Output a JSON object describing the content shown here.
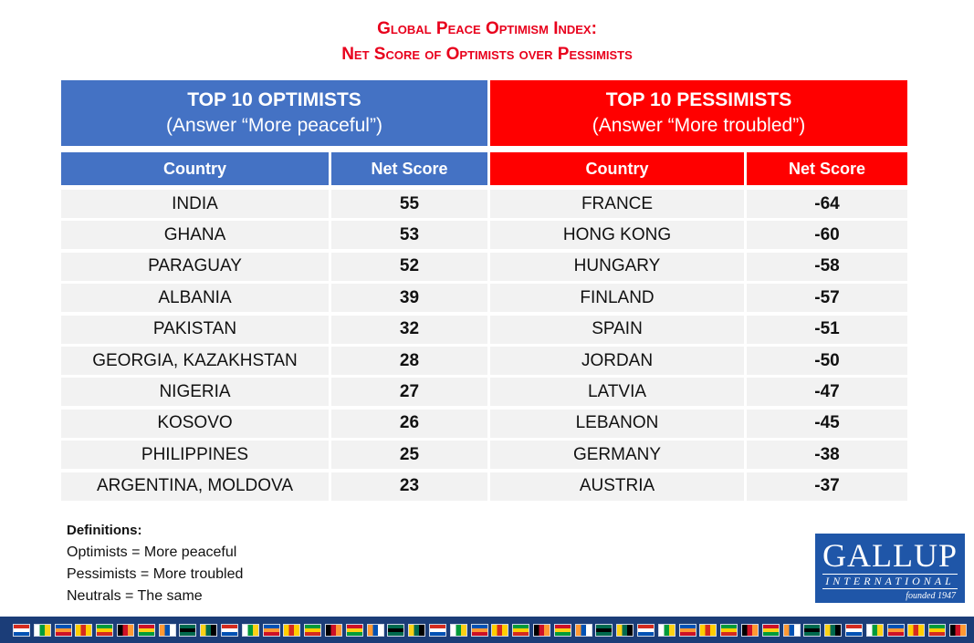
{
  "title_line1": "Global Peace Optimism Index:",
  "title_line2": "Net Score of Optimists over Pessimists",
  "optimists_header": {
    "title": "TOP 10 OPTIMISTS",
    "subtitle": "(Answer “More peaceful”)"
  },
  "pessimists_header": {
    "title": "TOP 10 PESSIMISTS",
    "subtitle": "(Answer “More troubled”)"
  },
  "column_headers": {
    "country": "Country",
    "net_score": "Net Score"
  },
  "colors": {
    "blue": "#4472c4",
    "red": "#ff0000",
    "title_red": "#e8001c",
    "row_bg": "#f2f2f2"
  },
  "chart_data": {
    "type": "table",
    "title": "Global Peace Optimism Index: Net Score of Optimists over Pessimists",
    "columns": [
      "Country",
      "Net Score",
      "Country",
      "Net Score"
    ],
    "optimists": [
      {
        "country": "INDIA",
        "score": "55"
      },
      {
        "country": "GHANA",
        "score": "53"
      },
      {
        "country": "PARAGUAY",
        "score": "52"
      },
      {
        "country": "ALBANIA",
        "score": "39"
      },
      {
        "country": "PAKISTAN",
        "score": "32"
      },
      {
        "country": "GEORGIA, KAZAKHSTAN",
        "score": "28"
      },
      {
        "country": "NIGERIA",
        "score": "27"
      },
      {
        "country": "KOSOVO",
        "score": "26"
      },
      {
        "country": "PHILIPPINES",
        "score": "25"
      },
      {
        "country": "ARGENTINA, MOLDOVA",
        "score": "23"
      }
    ],
    "pessimists": [
      {
        "country": "FRANCE",
        "score": "-64"
      },
      {
        "country": "HONG KONG",
        "score": "-60"
      },
      {
        "country": "HUNGARY",
        "score": "-58"
      },
      {
        "country": "FINLAND",
        "score": "-57"
      },
      {
        "country": "SPAIN",
        "score": "-51"
      },
      {
        "country": "JORDAN",
        "score": "-50"
      },
      {
        "country": "LATVIA",
        "score": "-47"
      },
      {
        "country": "LEBANON",
        "score": "-45"
      },
      {
        "country": "GERMANY",
        "score": "-38"
      },
      {
        "country": "AUSTRIA",
        "score": "-37"
      }
    ]
  },
  "definitions": {
    "title": "Definitions:",
    "optimists": "Optimists = More peaceful",
    "pessimists": "Pessimists = More troubled",
    "neutrals": "Neutrals = The same"
  },
  "logo": {
    "name": "GALLUP",
    "sub": "INTERNATIONAL",
    "founded": "founded 1947"
  },
  "flag_strip_icon": "country-flags-strip"
}
